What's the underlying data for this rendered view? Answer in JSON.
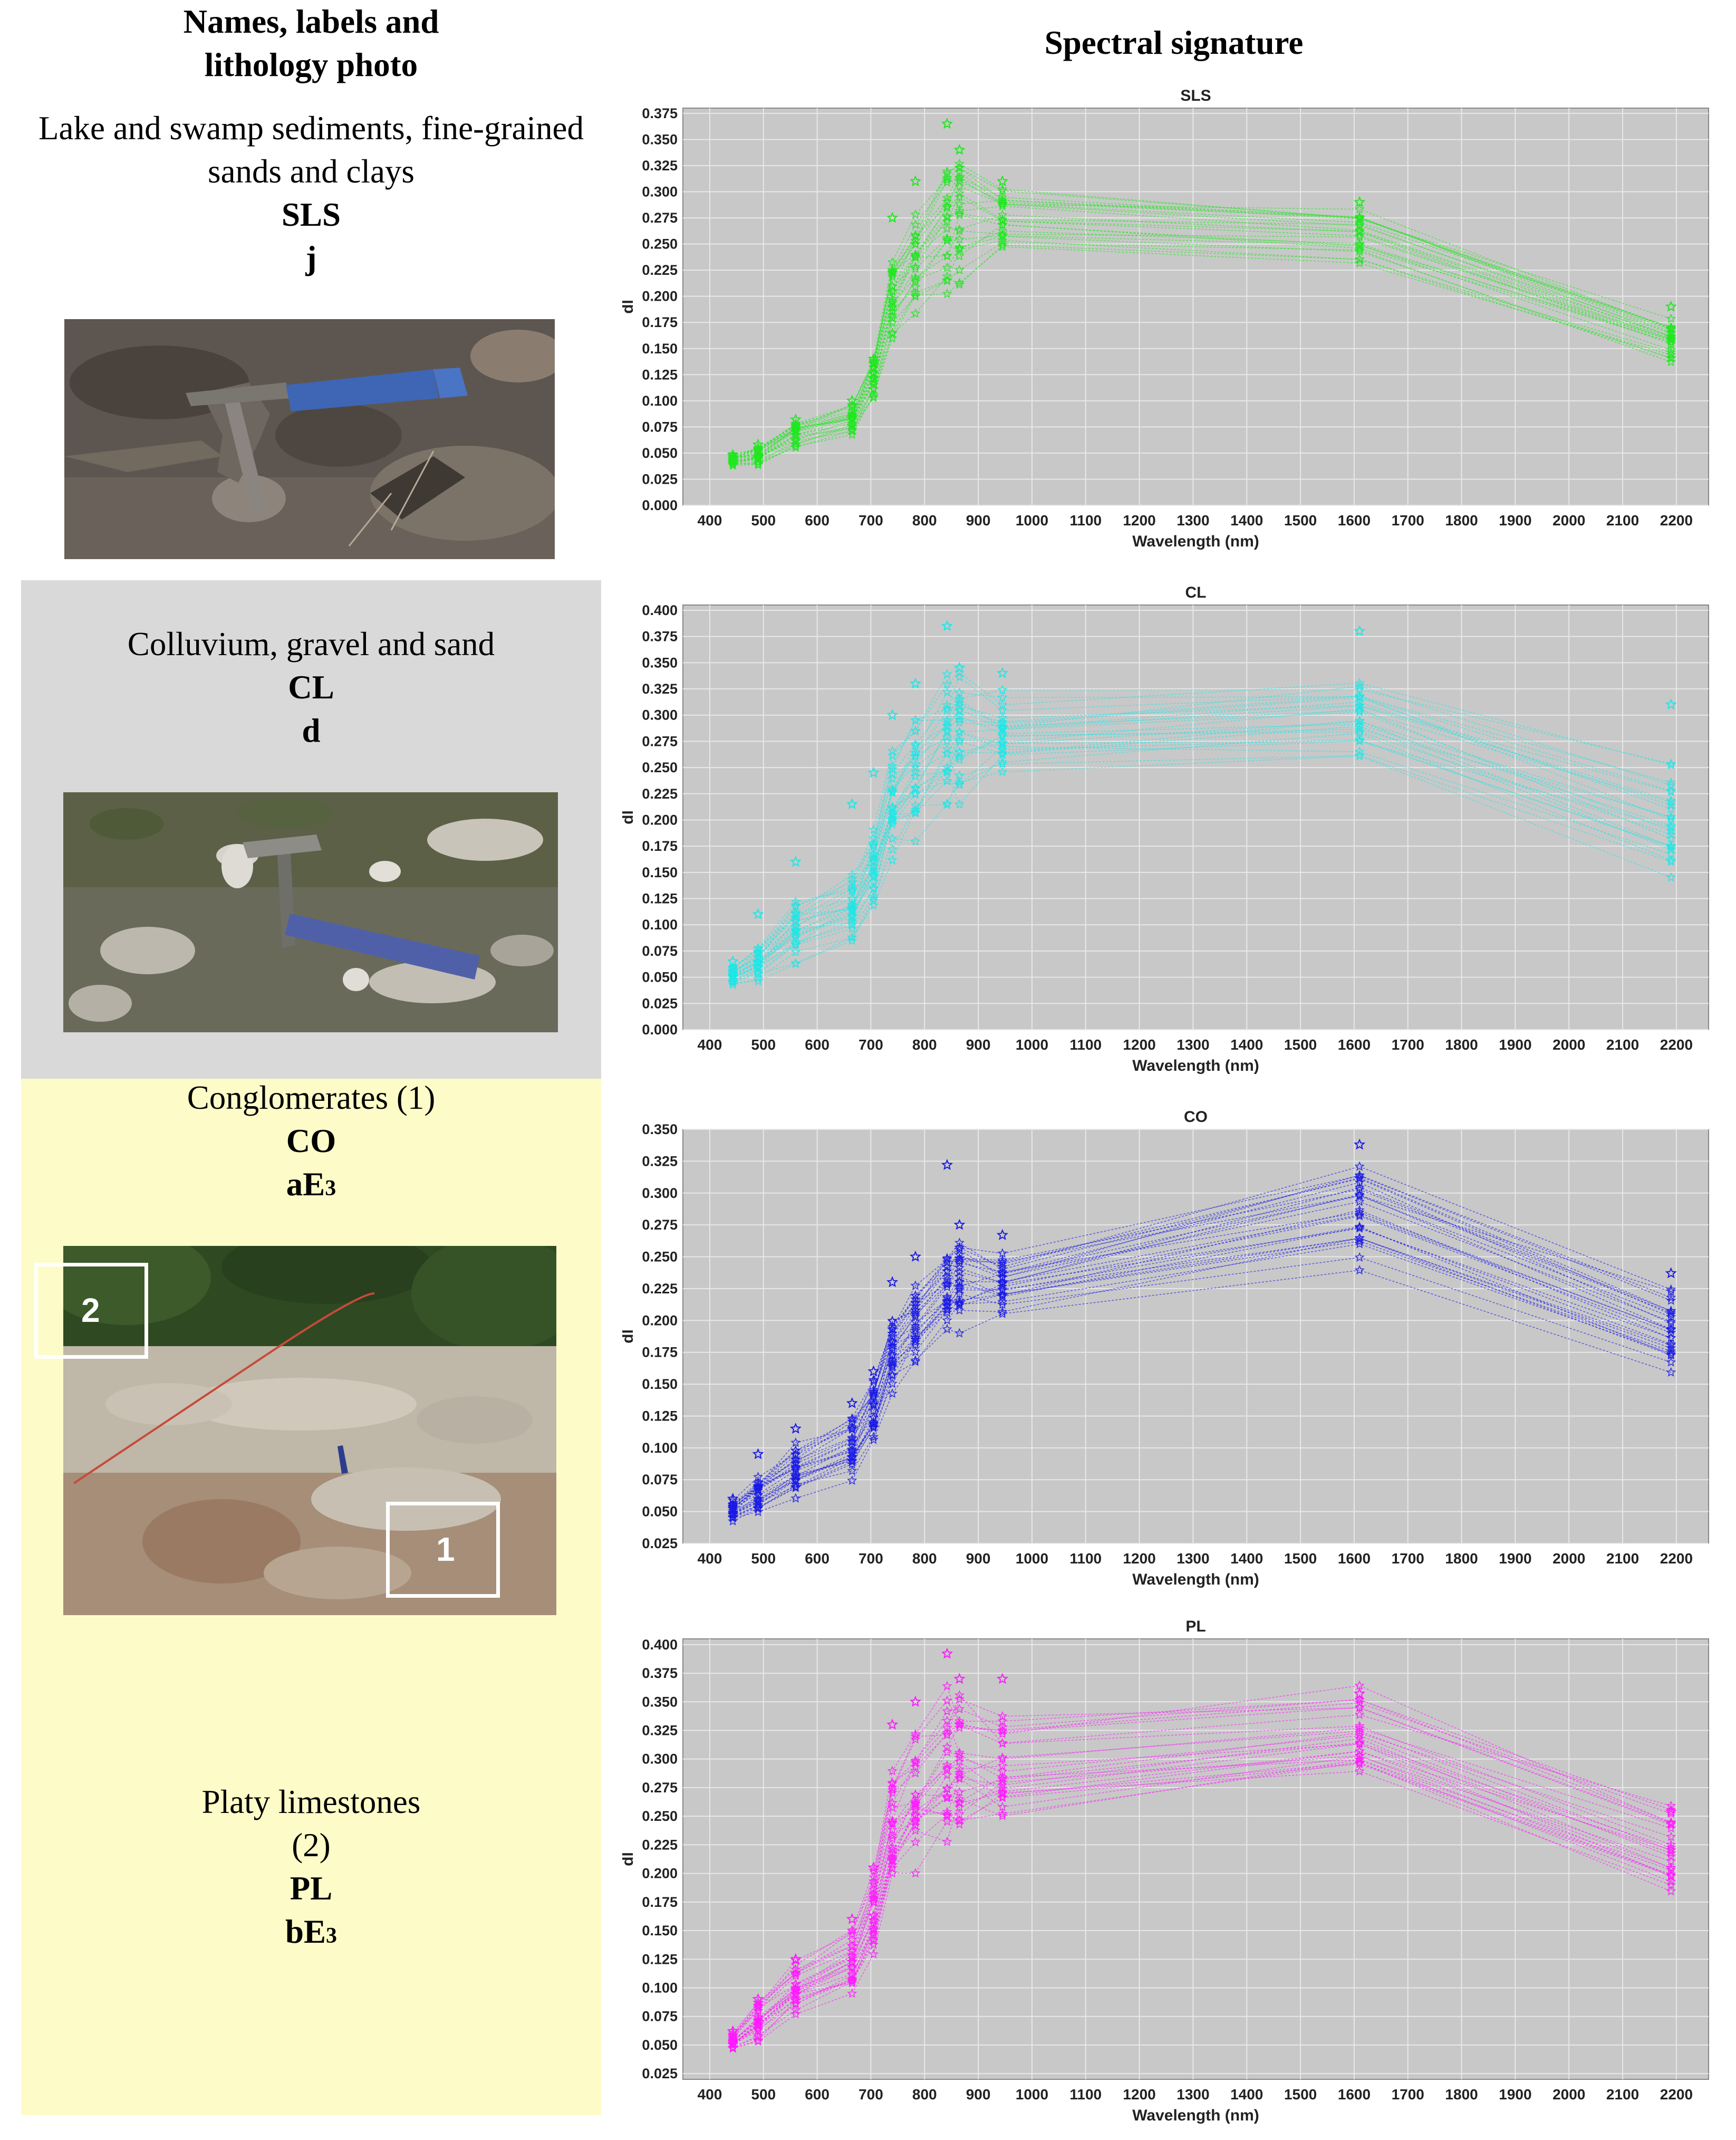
{
  "headers": {
    "left": [
      "Names, labels and",
      "lithology photo"
    ],
    "right": "Spectral signature"
  },
  "units": [
    {
      "name_lines": [
        "Lake and swamp sediments, fine-grained",
        "sands and clays"
      ],
      "code": "SLS",
      "label": "j"
    },
    {
      "name_lines": [
        "Colluvium, gravel and sand"
      ],
      "code": "CL",
      "label": "d"
    },
    {
      "name_lines": [
        "Conglomerates (1)"
      ],
      "code": "CO",
      "label_main": "aE",
      "label_sub": "3"
    },
    {
      "name_lines": [
        "Platy limestones",
        "(2)"
      ],
      "code": "PL",
      "label_main": "bE",
      "label_sub": "3"
    }
  ],
  "photo_markers": {
    "marker1": "1",
    "marker2": "2"
  },
  "colors": {
    "band_gray": "#d9d9d9",
    "band_yellow": "#fdfcc8",
    "plot_background": "#c8c8c8",
    "SLS": "#1ee81e",
    "CL": "#1fe6e6",
    "CO": "#1a1ae6",
    "PL": "#ff1aff"
  },
  "chart_data": [
    {
      "type": "line",
      "title": "SLS",
      "xlabel": "Wavelength (nm)",
      "ylabel": "dl",
      "x_ticks": [
        400,
        500,
        600,
        700,
        800,
        900,
        1000,
        1100,
        1200,
        1300,
        1400,
        1500,
        1600,
        1700,
        1800,
        1900,
        2000,
        2100,
        2200
      ],
      "y_ticks": [
        0.0,
        0.025,
        0.05,
        0.075,
        0.1,
        0.125,
        0.15,
        0.175,
        0.2,
        0.225,
        0.25,
        0.275,
        0.3,
        0.325,
        0.35,
        0.375
      ],
      "y_tick_labels": [
        "0.000",
        "0.025",
        "0.050",
        "0.075",
        "0.100",
        "0.125",
        "0.150",
        "0.175",
        "0.200",
        "0.225",
        "0.250",
        "0.275",
        "0.300",
        "0.325",
        "0.350",
        "0.375"
      ],
      "ylim": [
        0.0,
        0.38
      ],
      "xlim": [
        350,
        2260
      ],
      "grid": true,
      "marker": "star",
      "color": "#1ee81e",
      "x": [
        443,
        490,
        560,
        665,
        705,
        740,
        783,
        842,
        865,
        945,
        1610,
        2190
      ],
      "series_mean": [
        0.043,
        0.047,
        0.068,
        0.082,
        0.122,
        0.195,
        0.232,
        0.265,
        0.272,
        0.272,
        0.258,
        0.158
      ],
      "series_spread": [
        0.005,
        0.008,
        0.01,
        0.012,
        0.018,
        0.035,
        0.04,
        0.05,
        0.05,
        0.03,
        0.025,
        0.02
      ],
      "highlight_max": [
        0.048,
        0.058,
        0.082,
        0.1,
        0.14,
        0.275,
        0.31,
        0.365,
        0.34,
        0.31,
        0.29,
        0.19
      ],
      "n_series": 24
    },
    {
      "type": "line",
      "title": "CL",
      "xlabel": "Wavelength (nm)",
      "ylabel": "dl",
      "x_ticks": [
        400,
        500,
        600,
        700,
        800,
        900,
        1000,
        1100,
        1200,
        1300,
        1400,
        1500,
        1600,
        1700,
        1800,
        1900,
        2000,
        2100,
        2200
      ],
      "y_ticks": [
        0.0,
        0.025,
        0.05,
        0.075,
        0.1,
        0.125,
        0.15,
        0.175,
        0.2,
        0.225,
        0.25,
        0.275,
        0.3,
        0.325,
        0.35,
        0.375,
        0.4
      ],
      "y_tick_labels": [
        "0.000",
        "0.025",
        "0.050",
        "0.075",
        "0.100",
        "0.125",
        "0.150",
        "0.175",
        "0.200",
        "0.225",
        "0.250",
        "0.275",
        "0.300",
        "0.325",
        "0.350",
        "0.375",
        "0.400"
      ],
      "ylim": [
        0.0,
        0.405
      ],
      "xlim": [
        350,
        2260
      ],
      "grid": true,
      "marker": "star",
      "color": "#1fe6e6",
      "x": [
        443,
        490,
        560,
        665,
        705,
        740,
        783,
        842,
        865,
        945,
        1610,
        2190
      ],
      "series_mean": [
        0.052,
        0.065,
        0.095,
        0.115,
        0.155,
        0.215,
        0.245,
        0.275,
        0.28,
        0.285,
        0.3,
        0.2
      ],
      "series_spread": [
        0.008,
        0.015,
        0.025,
        0.035,
        0.035,
        0.045,
        0.05,
        0.055,
        0.055,
        0.035,
        0.04,
        0.045
      ],
      "highlight_max": [
        0.065,
        0.11,
        0.16,
        0.215,
        0.245,
        0.3,
        0.33,
        0.385,
        0.345,
        0.34,
        0.38,
        0.31
      ],
      "n_series": 26
    },
    {
      "type": "line",
      "title": "CO",
      "xlabel": "Wavelength (nm)",
      "ylabel": "dl",
      "x_ticks": [
        400,
        500,
        600,
        700,
        800,
        900,
        1000,
        1100,
        1200,
        1300,
        1400,
        1500,
        1600,
        1700,
        1800,
        1900,
        2000,
        2100,
        2200
      ],
      "y_ticks": [
        0.025,
        0.05,
        0.075,
        0.1,
        0.125,
        0.15,
        0.175,
        0.2,
        0.225,
        0.25,
        0.275,
        0.3,
        0.325,
        0.35
      ],
      "y_tick_labels": [
        "0.025",
        "0.050",
        "0.075",
        "0.100",
        "0.125",
        "0.150",
        "0.175",
        "0.200",
        "0.225",
        "0.250",
        "0.275",
        "0.300",
        "0.325",
        "0.350"
      ],
      "ylim": [
        0.025,
        0.35
      ],
      "xlim": [
        350,
        2260
      ],
      "grid": true,
      "marker": "star",
      "color": "#1a1ae6",
      "x": [
        443,
        490,
        560,
        665,
        705,
        740,
        783,
        842,
        865,
        945,
        1610,
        2190
      ],
      "series_mean": [
        0.05,
        0.063,
        0.082,
        0.1,
        0.13,
        0.175,
        0.195,
        0.225,
        0.23,
        0.228,
        0.28,
        0.19
      ],
      "series_spread": [
        0.007,
        0.012,
        0.018,
        0.02,
        0.02,
        0.025,
        0.025,
        0.03,
        0.03,
        0.02,
        0.035,
        0.03
      ],
      "highlight_max": [
        0.06,
        0.095,
        0.115,
        0.135,
        0.16,
        0.23,
        0.25,
        0.322,
        0.275,
        0.267,
        0.338,
        0.237
      ],
      "n_series": 26
    },
    {
      "type": "line",
      "title": "PL",
      "xlabel": "Wavelength (nm)",
      "ylabel": "dl",
      "x_ticks": [
        400,
        500,
        600,
        700,
        800,
        900,
        1000,
        1100,
        1200,
        1300,
        1400,
        1500,
        1600,
        1700,
        1800,
        1900,
        2000,
        2100,
        2200
      ],
      "y_ticks": [
        0.025,
        0.05,
        0.075,
        0.1,
        0.125,
        0.15,
        0.175,
        0.2,
        0.225,
        0.25,
        0.275,
        0.3,
        0.325,
        0.35,
        0.375,
        0.4
      ],
      "y_tick_labels": [
        "0.025",
        "0.050",
        "0.075",
        "0.100",
        "0.125",
        "0.150",
        "0.175",
        "0.200",
        "0.225",
        "0.250",
        "0.275",
        "0.300",
        "0.325",
        "0.350",
        "0.375",
        "0.400"
      ],
      "ylim": [
        0.02,
        0.405
      ],
      "xlim": [
        350,
        2260
      ],
      "grid": true,
      "marker": "star",
      "color": "#ff1aff",
      "x": [
        443,
        490,
        560,
        665,
        705,
        740,
        783,
        842,
        865,
        945,
        1610,
        2190
      ],
      "series_mean": [
        0.053,
        0.07,
        0.098,
        0.12,
        0.165,
        0.235,
        0.26,
        0.285,
        0.29,
        0.29,
        0.318,
        0.22
      ],
      "series_spread": [
        0.006,
        0.015,
        0.02,
        0.025,
        0.03,
        0.045,
        0.05,
        0.06,
        0.06,
        0.04,
        0.035,
        0.035
      ],
      "highlight_max": [
        0.062,
        0.09,
        0.125,
        0.16,
        0.205,
        0.33,
        0.35,
        0.392,
        0.37,
        0.37,
        0.357,
        0.254
      ],
      "n_series": 26
    }
  ]
}
